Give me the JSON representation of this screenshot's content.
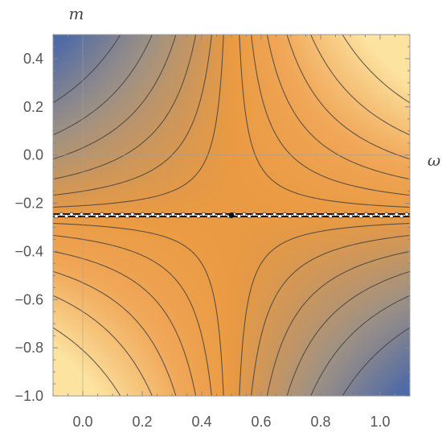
{
  "chart_data": {
    "type": "heatmap",
    "subtype": "contour",
    "title": "",
    "xlabel": "ω",
    "ylabel": "m",
    "xlim": [
      -0.1,
      1.1
    ],
    "ylim": [
      -1.0,
      0.5
    ],
    "x_ticks": [
      0.0,
      0.2,
      0.4,
      0.6,
      0.8,
      1.0
    ],
    "x_tick_labels": [
      "0.0",
      "0.2",
      "0.4",
      "0.6",
      "0.8",
      "1.0"
    ],
    "y_ticks": [
      0.4,
      0.2,
      0.0,
      -0.2,
      -0.4,
      -0.6,
      -0.8,
      -1.0
    ],
    "y_tick_labels": [
      "0.4",
      "0.2",
      "0.0",
      "−0.2",
      "−0.4",
      "−0.6",
      "−0.8",
      "−1.0"
    ],
    "singular_line": {
      "m": -0.25,
      "saddle_omega": 0.5
    },
    "contour_levels": [
      -0.28,
      -0.2,
      -0.14,
      -0.09,
      -0.05,
      -0.02,
      0.02,
      0.05,
      0.09,
      0.14,
      0.2,
      0.28
    ],
    "colormap": {
      "low": "#4e6aa8",
      "mid_low": "#9e9185",
      "mid": "#f0a758",
      "center": "#ea9a42",
      "high": "#fce3a0"
    },
    "grid": false,
    "legend": "none"
  }
}
